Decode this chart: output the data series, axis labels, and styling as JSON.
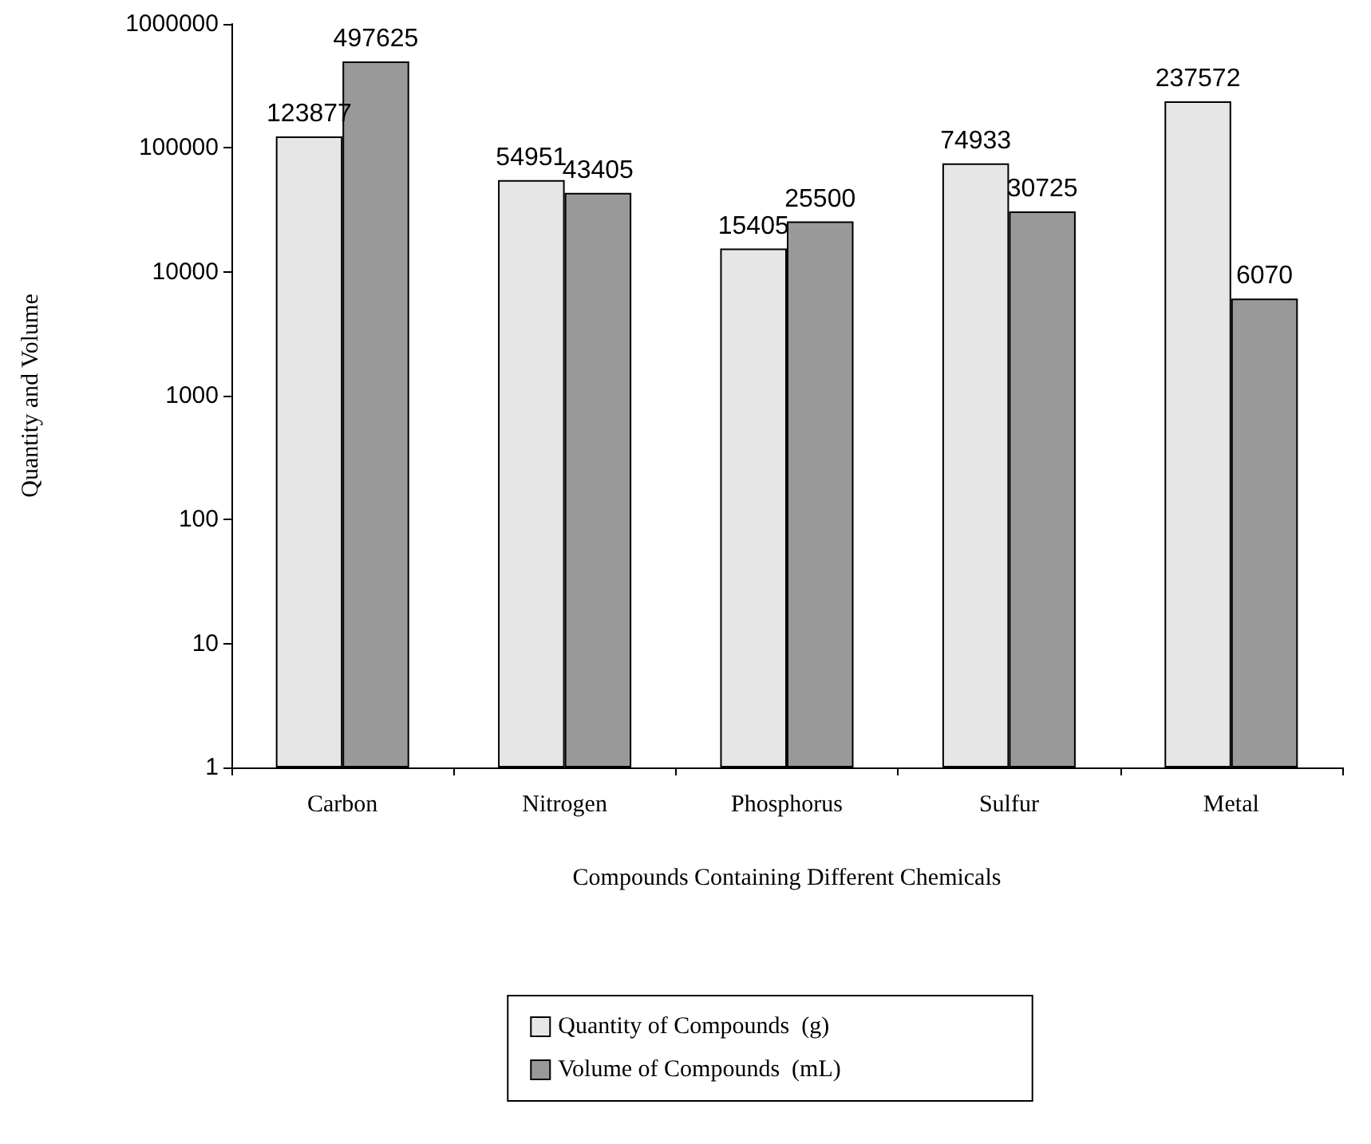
{
  "chart_data": {
    "type": "bar",
    "xlabel": "Compounds Containing Different Chemicals",
    "ylabel": "Quantity and Volume",
    "categories": [
      "Carbon",
      "Nitrogen",
      "Phosphorus",
      "Sulfur",
      "Metal"
    ],
    "series": [
      {
        "name": "Quantity of Compounds  (g)",
        "color": "#e6e6e6",
        "values": [
          123877,
          54951,
          15405,
          74933,
          237572
        ]
      },
      {
        "name": "Volume of Compounds  (mL)",
        "color": "#999999",
        "values": [
          497625,
          43405,
          25500,
          30725,
          6070
        ]
      }
    ],
    "log": true,
    "ylim": [
      1,
      1000000
    ],
    "yticks": [
      1,
      10,
      100,
      1000,
      10000,
      100000,
      1000000
    ],
    "grid": false,
    "legend": "bottom",
    "data_labels": true
  }
}
